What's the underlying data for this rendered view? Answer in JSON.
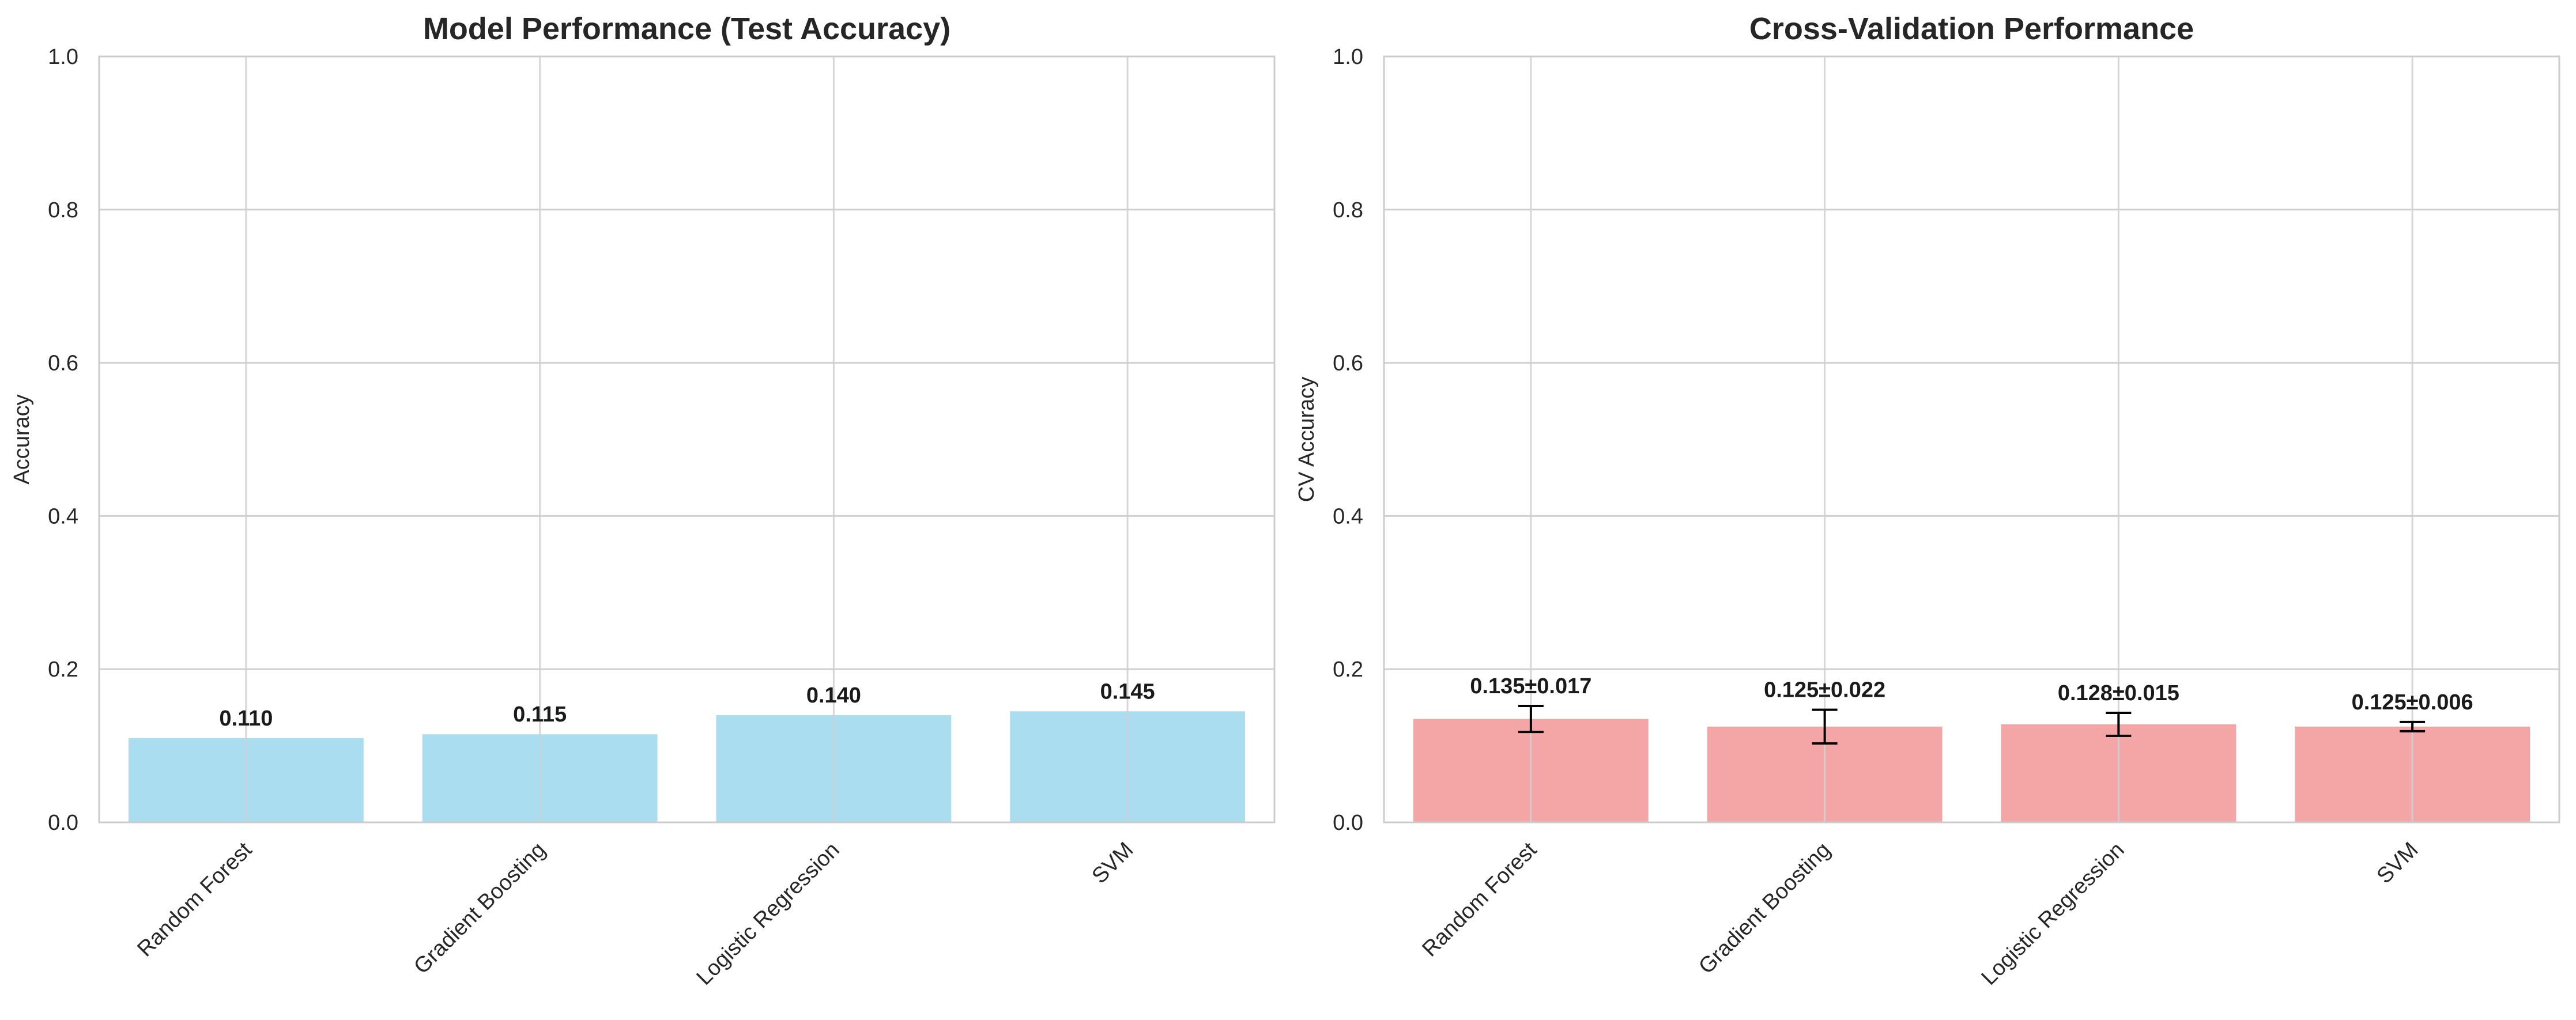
{
  "chart_data": [
    {
      "type": "bar",
      "title": "Model Performance (Test Accuracy)",
      "xlabel": "",
      "ylabel": "Accuracy",
      "categories": [
        "Random Forest",
        "Gradient Boosting",
        "Logistic Regression",
        "SVM"
      ],
      "values": [
        0.11,
        0.115,
        0.14,
        0.145
      ],
      "value_labels": [
        "0.110",
        "0.115",
        "0.140",
        "0.145"
      ],
      "ylim": [
        0,
        1.0
      ],
      "yticks": [
        0.0,
        0.2,
        0.4,
        0.6,
        0.8,
        1.0
      ],
      "ytick_labels": [
        "0.0",
        "0.2",
        "0.4",
        "0.6",
        "0.8",
        "1.0"
      ],
      "grid": true,
      "bar_color": "#87CEEB"
    },
    {
      "type": "bar",
      "title": "Cross-Validation Performance",
      "xlabel": "",
      "ylabel": "CV Accuracy",
      "categories": [
        "Random Forest",
        "Gradient Boosting",
        "Logistic Regression",
        "SVM"
      ],
      "values": [
        0.135,
        0.125,
        0.128,
        0.125
      ],
      "errors": [
        0.017,
        0.022,
        0.015,
        0.006
      ],
      "value_labels": [
        "0.135±0.017",
        "0.125±0.022",
        "0.128±0.015",
        "0.125±0.006"
      ],
      "ylim": [
        0,
        1.0
      ],
      "yticks": [
        0.0,
        0.2,
        0.4,
        0.6,
        0.8,
        1.0
      ],
      "ytick_labels": [
        "0.0",
        "0.2",
        "0.4",
        "0.6",
        "0.8",
        "1.0"
      ],
      "grid": true,
      "bar_color": "#F08080"
    }
  ]
}
